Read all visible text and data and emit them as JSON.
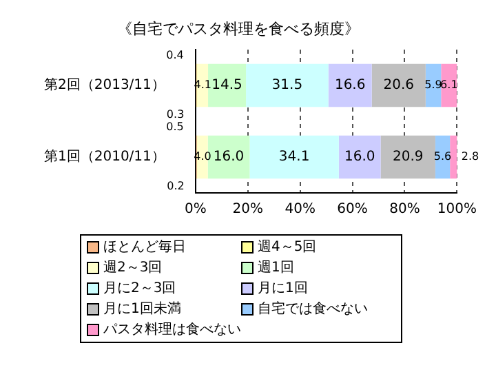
{
  "chart_data": {
    "type": "bar",
    "orientation": "horizontal",
    "stacked": true,
    "title": "《自宅でパスタ料理を食べる頻度》",
    "categories": [
      "第2回（2013/11）",
      "第1回（2010/11）"
    ],
    "series": [
      {
        "name": "ほとんど毎日",
        "color": "#f8b888",
        "values": [
          0.4,
          0.5
        ],
        "value_labels": [
          "0.4",
          "0.5"
        ]
      },
      {
        "name": "週4～5回",
        "color": "#ffff99",
        "values": [
          0.3,
          0.2
        ],
        "value_labels": [
          "0.3",
          "0.2"
        ]
      },
      {
        "name": "週2～3回",
        "color": "#ffffcc",
        "values": [
          4.1,
          4.0
        ],
        "value_labels": [
          "4.1",
          "4.0"
        ]
      },
      {
        "name": "週1回",
        "color": "#ccffcc",
        "values": [
          14.5,
          16.0
        ],
        "value_labels": [
          "14.5",
          "16.0"
        ]
      },
      {
        "name": "月に2～3回",
        "color": "#ccffff",
        "values": [
          31.5,
          34.1
        ],
        "value_labels": [
          "31.5",
          "34.1"
        ]
      },
      {
        "name": "月に1回",
        "color": "#ccccff",
        "values": [
          16.6,
          16.0
        ],
        "value_labels": [
          "16.6",
          "16.0"
        ]
      },
      {
        "name": "月に1回未満",
        "color": "#c0c0c0",
        "values": [
          20.6,
          20.9
        ],
        "value_labels": [
          "20.6",
          "20.9"
        ]
      },
      {
        "name": "自宅では食べない",
        "color": "#99ccff",
        "values": [
          5.9,
          5.6
        ],
        "value_labels": [
          "5.9",
          "5.6"
        ]
      },
      {
        "name": "パスタ料理は食べない",
        "color": "#ff99cc",
        "values": [
          6.1,
          2.8
        ],
        "value_labels": [
          "6.1",
          "2.8"
        ]
      }
    ],
    "xlim": [
      0,
      100
    ],
    "xticks": [
      {
        "value": 0,
        "label": "0%"
      },
      {
        "value": 20,
        "label": "20%"
      },
      {
        "value": 40,
        "label": "40%"
      },
      {
        "value": 60,
        "label": "60%"
      },
      {
        "value": 80,
        "label": "80%"
      },
      {
        "value": 100,
        "label": "100%"
      }
    ],
    "grid": "x",
    "legend": "bottom"
  }
}
